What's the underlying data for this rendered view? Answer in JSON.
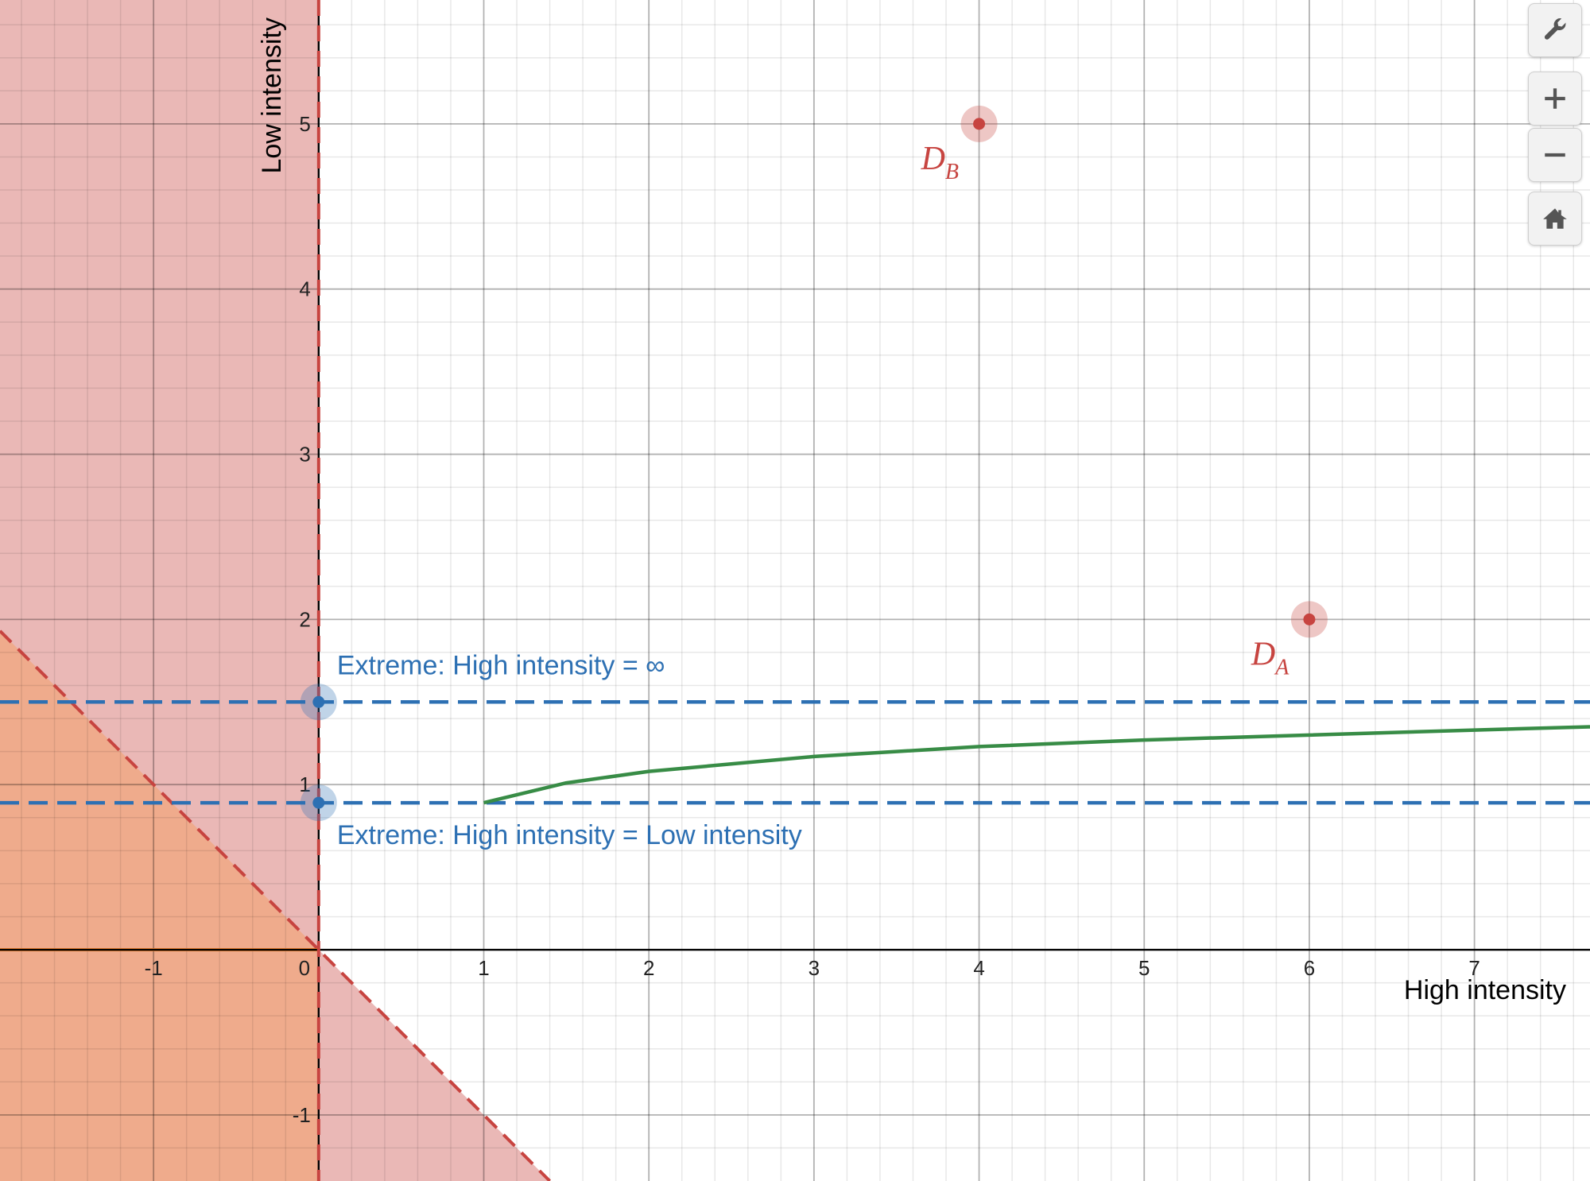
{
  "chart_data": {
    "type": "scatter",
    "xlabel": "High intensity",
    "ylabel": "Low intensity",
    "xlim": [
      -1.93,
      7.7
    ],
    "ylim": [
      -1.4,
      5.75
    ],
    "x_ticks": [
      -1,
      0,
      1,
      2,
      3,
      4,
      5,
      6,
      7
    ],
    "y_ticks": [
      -1,
      1,
      2,
      3,
      4,
      5
    ],
    "origin_label": "0",
    "grid": true,
    "minor_grid_step": 0.2,
    "points": [
      {
        "label": "D",
        "subscript": "B",
        "x": 4,
        "y": 5,
        "color": "#c74440"
      },
      {
        "label": "D",
        "subscript": "A",
        "x": 6,
        "y": 2,
        "color": "#c74440"
      },
      {
        "x": 0,
        "y": 1.5,
        "color": "#2d70b3"
      },
      {
        "x": 0,
        "y": 0.89,
        "color": "#2d70b3"
      }
    ],
    "horizontal_lines": [
      {
        "y": 1.5,
        "style": "dashed",
        "color": "#2d70b3",
        "label": "Extreme: High intensity = ∞"
      },
      {
        "y": 0.89,
        "style": "dashed",
        "color": "#2d70b3",
        "label": "Extreme: High intensity = Low intensity"
      }
    ],
    "curve": {
      "color": "#388c46",
      "x": [
        1,
        1.5,
        2,
        3,
        4,
        5,
        6,
        7,
        7.7
      ],
      "y": [
        0.89,
        1.01,
        1.08,
        1.17,
        1.23,
        1.27,
        1.3,
        1.33,
        1.35
      ]
    },
    "regions": [
      {
        "description": "x < 0 or x + y < 0",
        "color": "#c74440",
        "opacity": 0.38,
        "boundary": "dashed"
      },
      {
        "description": "x < 0 and x + y < 0",
        "color": "#f79646",
        "opacity": 0.38
      }
    ]
  },
  "toolbar": {
    "buttons": [
      {
        "name": "settings-button",
        "icon": "wrench-icon"
      },
      {
        "name": "zoom-in-button",
        "icon": "plus-icon"
      },
      {
        "name": "zoom-out-button",
        "icon": "minus-icon"
      },
      {
        "name": "home-button",
        "icon": "home-icon"
      }
    ]
  }
}
